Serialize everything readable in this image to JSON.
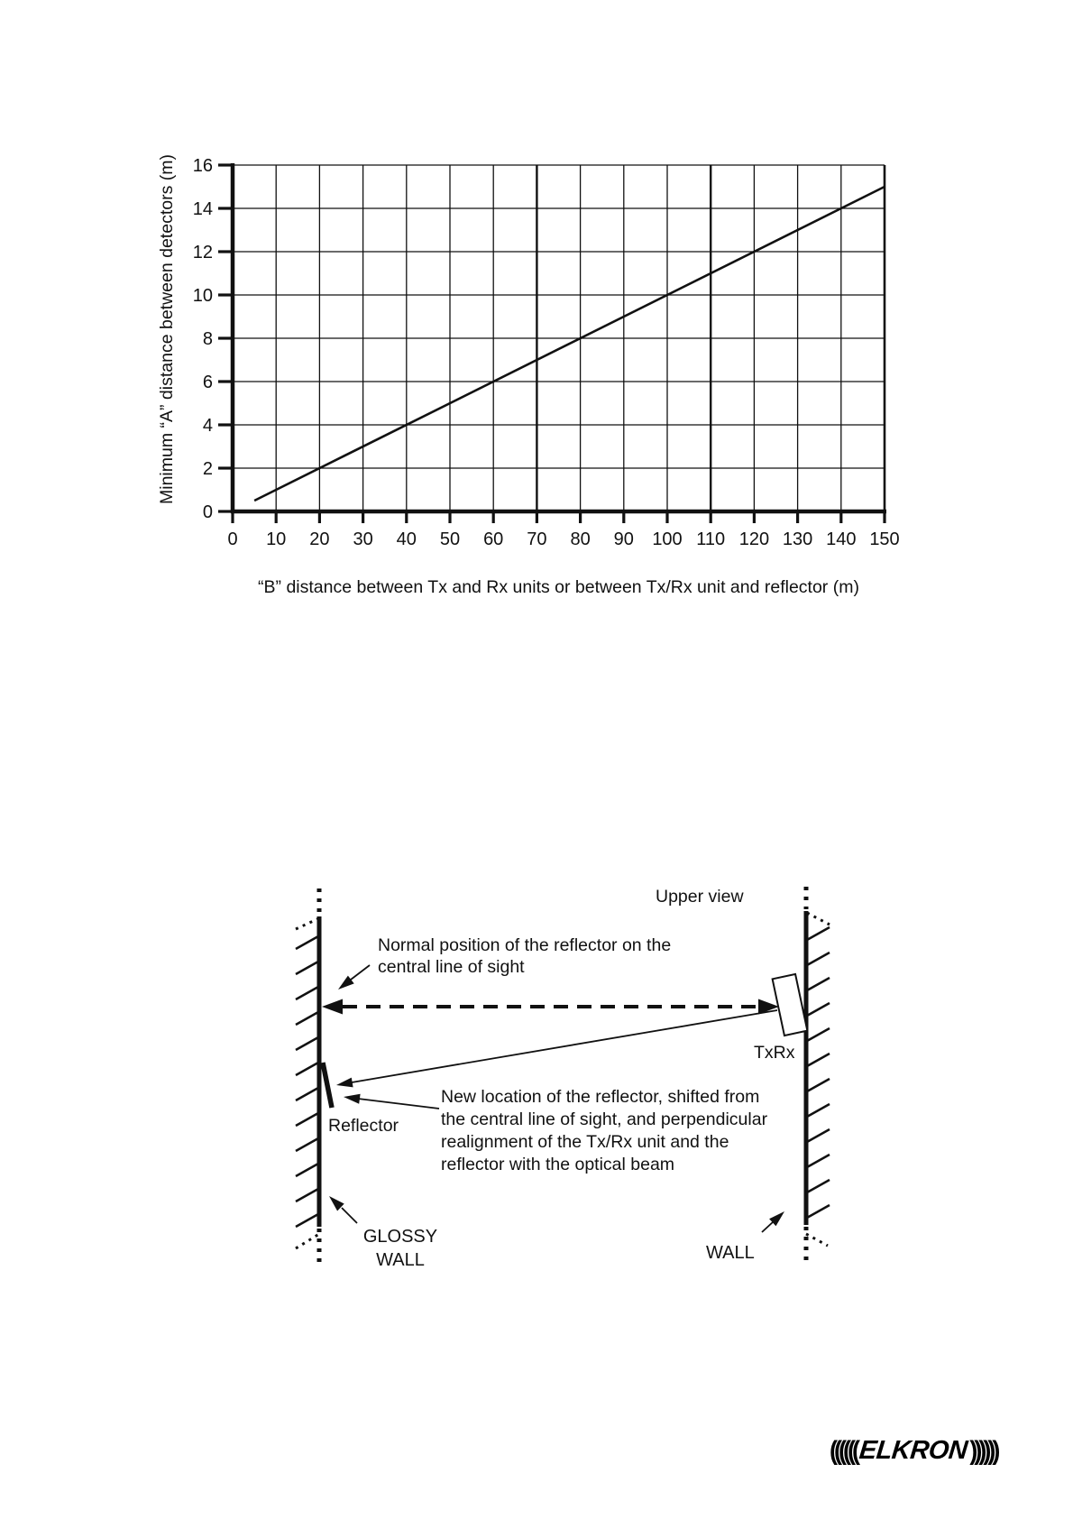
{
  "chart_data": {
    "type": "line",
    "title": "",
    "xlabel": "“B” distance between Tx and Rx units or between Tx/Rx unit and reflector (m)",
    "ylabel": "Minimum “A” distance between detectors (m)",
    "xlim": [
      0,
      150
    ],
    "ylim": [
      0,
      16
    ],
    "x_ticks": [
      0,
      10,
      20,
      30,
      40,
      50,
      60,
      70,
      80,
      90,
      100,
      110,
      120,
      130,
      140,
      150
    ],
    "y_ticks": [
      0,
      2,
      4,
      6,
      8,
      10,
      12,
      14,
      16
    ],
    "grid": true,
    "emphasized_x_gridlines": [
      70,
      110
    ],
    "legend": "none",
    "series": [
      {
        "name": "Minimum A distance vs B distance",
        "points": [
          [
            5,
            0.5
          ],
          [
            150,
            15
          ]
        ]
      }
    ]
  },
  "diagram": {
    "title": "Upper view",
    "labels": {
      "normal_position": "Normal position of the reflector on the\ncentral line of sight",
      "txrx": "TxRx",
      "reflector": "Reflector",
      "new_location": "New location of the reflector, shifted from\nthe central line of sight, and perpendicular\nrealignment of the Tx/Rx unit and the\nreflector with the optical beam",
      "glossy_wall": "GLOSSY\nWALL",
      "wall": "WALL"
    }
  },
  "logo": {
    "left_waves": "((((((",
    "text": "ELKRON",
    "right_waves": "))))))"
  }
}
